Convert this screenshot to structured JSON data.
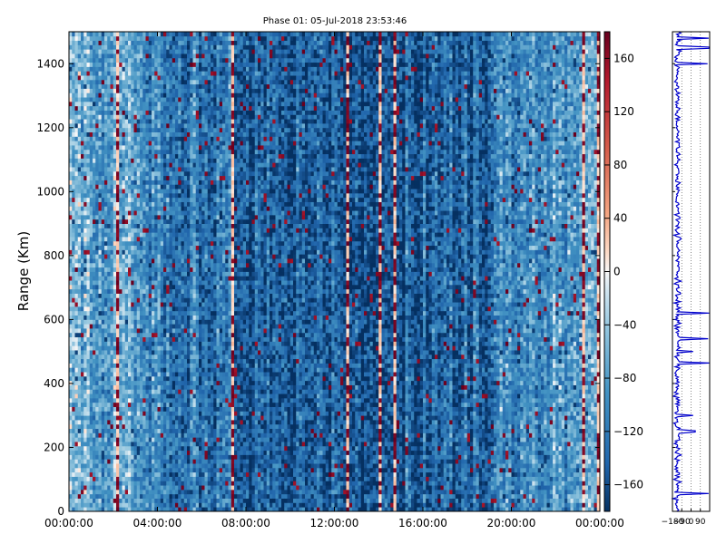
{
  "chart_data": [
    {
      "type": "heatmap",
      "title": "Phase 01: 05-Jul-2018 23:53:46",
      "xlabel": "",
      "ylabel": "Range (Km)",
      "x_start": "00:00:00",
      "x_end": "00:00:00",
      "x_range_hours": [
        0,
        24
      ],
      "xticks": [
        "00:00:00",
        "04:00:00",
        "08:00:00",
        "12:00:00",
        "16:00:00",
        "20:00:00",
        "00:00:00"
      ],
      "ylim": [
        0,
        1500
      ],
      "yticks": [
        "0",
        "200",
        "400",
        "600",
        "800",
        "1000",
        "1200",
        "1400"
      ],
      "value_range": [
        -180,
        180
      ],
      "colormap": "RdBu_r",
      "colorbar_ticks": [
        "160",
        "120",
        "80",
        "40",
        "0",
        "−40",
        "−80",
        "−120",
        "−160"
      ],
      "colors": {
        "strong_positive": "#67001f",
        "neutral": "#f7f7f7",
        "strong_negative": "#053061",
        "dominant_blue": "#2f6fad"
      },
      "mean_phase_by_time": [
        {
          "hours": 0,
          "phase": -60
        },
        {
          "hours": 2,
          "phase": -90
        },
        {
          "hours": 3,
          "phase": -80
        },
        {
          "hours": 4,
          "phase": -100
        },
        {
          "hours": 6,
          "phase": -120
        },
        {
          "hours": 8,
          "phase": -135
        },
        {
          "hours": 10,
          "phase": -145
        },
        {
          "hours": 12,
          "phase": -150
        },
        {
          "hours": 14,
          "phase": -150
        },
        {
          "hours": 16,
          "phase": -145
        },
        {
          "hours": 18,
          "phase": -135
        },
        {
          "hours": 20,
          "phase": -115
        },
        {
          "hours": 22,
          "phase": -90
        },
        {
          "hours": 24,
          "phase": -60
        }
      ],
      "time_columns": 180,
      "range_rows": 110
    },
    {
      "type": "line",
      "xlim": [
        -180,
        180
      ],
      "xticks": [
        "−180",
        "−90",
        "0",
        "90"
      ],
      "ylim": [
        0,
        1500
      ],
      "grid": true,
      "series": [
        {
          "color": "#0000cc",
          "points": [
            {
              "phase": -175,
              "range": 40
            },
            {
              "phase": 170,
              "range": 55
            },
            {
              "phase": -145,
              "range": 200
            },
            {
              "phase": 40,
              "range": 250
            },
            {
              "phase": -150,
              "range": 270
            },
            {
              "phase": 20,
              "range": 300
            },
            {
              "phase": -170,
              "range": 360
            },
            {
              "phase": -150,
              "range": 400
            },
            {
              "phase": 175,
              "range": 465
            },
            {
              "phase": 20,
              "range": 500
            },
            {
              "phase": 165,
              "range": 540
            },
            {
              "phase": -160,
              "range": 580
            },
            {
              "phase": 175,
              "range": 620
            },
            {
              "phase": -140,
              "range": 860
            },
            {
              "phase": 160,
              "range": 1400
            },
            {
              "phase": 175,
              "range": 1450
            },
            {
              "phase": 170,
              "range": 1480
            }
          ]
        }
      ]
    }
  ]
}
